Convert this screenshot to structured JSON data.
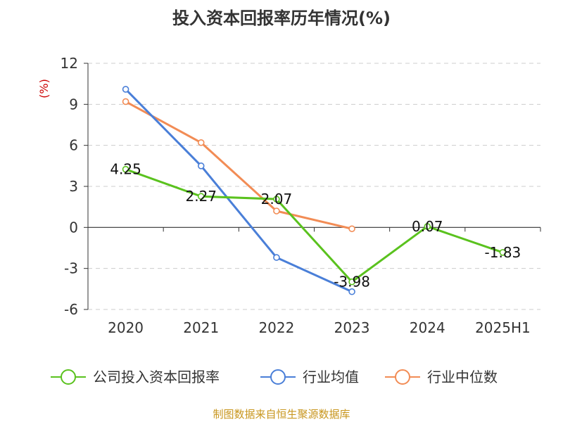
{
  "chart_data": {
    "type": "line",
    "title": "投入资本回报率历年情况(%)",
    "ylabel": "(%)",
    "xlabel": "",
    "categories": [
      "2020",
      "2021",
      "2022",
      "2023",
      "2024",
      "2025H1"
    ],
    "ylim": [
      -6,
      12
    ],
    "yticks": [
      12,
      9,
      6,
      3,
      0,
      -3,
      -6
    ],
    "grid": true,
    "legend_position": "bottom",
    "series": [
      {
        "name": "公司投入资本回报率",
        "color": "#5ac21e",
        "values": [
          4.25,
          2.27,
          2.07,
          -3.98,
          0.07,
          -1.83
        ],
        "labels": [
          "4.25",
          "2.27",
          "2.07",
          "-3.98",
          "0.07",
          "-1.83"
        ]
      },
      {
        "name": "行业均值",
        "color": "#4a7fd8",
        "values": [
          10.1,
          4.5,
          -2.2,
          -4.7,
          null,
          null
        ]
      },
      {
        "name": "行业中位数",
        "color": "#f28c55",
        "values": [
          9.2,
          6.2,
          1.2,
          -0.1,
          null,
          null
        ]
      }
    ]
  },
  "source_note": "制图数据来自恒生聚源数据库"
}
